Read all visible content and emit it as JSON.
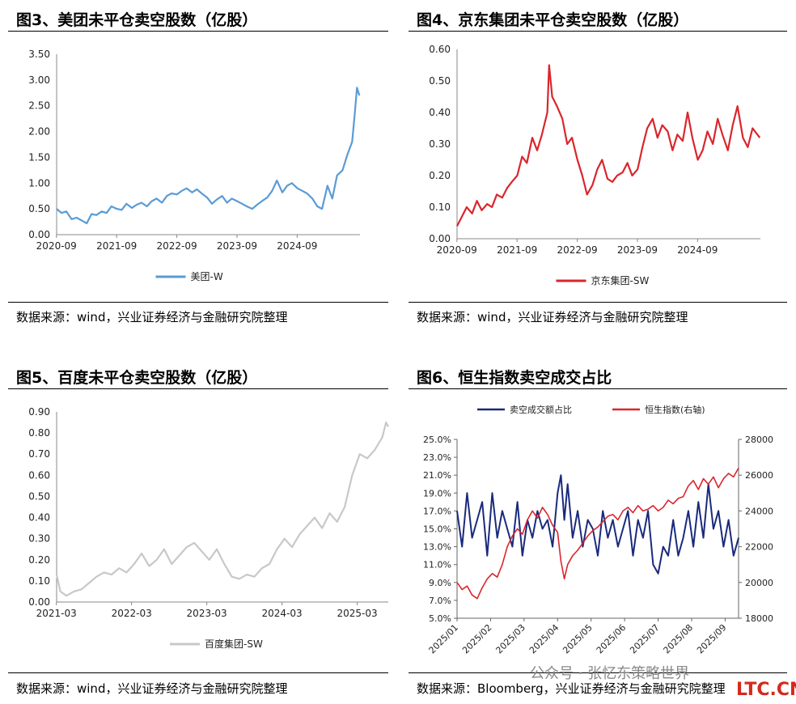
{
  "panels": [
    {
      "title": "图3、美团未平仓卖空股数（亿股）",
      "source": "数据来源：wind，兴业证券经济与金融研究院整理"
    },
    {
      "title": "图4、京东集团未平仓卖空股数（亿股）",
      "source": "数据来源：wind，兴业证券经济与金融研究院整理"
    },
    {
      "title": "图5、百度未平仓卖空股数（亿股）",
      "source": "数据来源：wind，兴业证券经济与金融研究院整理"
    },
    {
      "title": "图6、恒生指数卖空成交占比",
      "source": "数据来源：Bloomberg，兴业证券经济与金融研究院整理"
    }
  ],
  "watermark": "公众号 · 张忆东策略世界",
  "logo": "LTC.CN",
  "chart_data": [
    {
      "type": "line",
      "ylim": [
        0,
        3.5
      ],
      "yticks": [
        "0.00",
        "0.50",
        "1.00",
        "1.50",
        "2.00",
        "2.50",
        "3.00",
        "3.50"
      ],
      "xticks": [
        "2020-09",
        "2021-09",
        "2022-09",
        "2023-09",
        "2024-09"
      ],
      "xrange": [
        2020.67,
        2025.71
      ],
      "color": "#5b9bd5",
      "series": [
        {
          "name": "美团-W",
          "x": [
            2020.67,
            2020.75,
            2020.83,
            2020.92,
            2021.0,
            2021.08,
            2021.17,
            2021.25,
            2021.33,
            2021.42,
            2021.5,
            2021.58,
            2021.67,
            2021.75,
            2021.83,
            2021.92,
            2022.0,
            2022.08,
            2022.17,
            2022.25,
            2022.33,
            2022.42,
            2022.5,
            2022.58,
            2022.67,
            2022.75,
            2022.83,
            2022.92,
            2023.0,
            2023.08,
            2023.17,
            2023.25,
            2023.33,
            2023.42,
            2023.5,
            2023.58,
            2023.67,
            2023.75,
            2023.83,
            2023.92,
            2024.0,
            2024.08,
            2024.17,
            2024.25,
            2024.33,
            2024.42,
            2024.5,
            2024.58,
            2024.67,
            2024.75,
            2024.83,
            2024.92,
            2025.0,
            2025.08,
            2025.17,
            2025.25,
            2025.33,
            2025.42,
            2025.5,
            2025.58,
            2025.62,
            2025.66,
            2025.7
          ],
          "values": [
            0.5,
            0.42,
            0.45,
            0.3,
            0.33,
            0.28,
            0.22,
            0.4,
            0.38,
            0.45,
            0.42,
            0.55,
            0.5,
            0.48,
            0.6,
            0.52,
            0.58,
            0.62,
            0.55,
            0.65,
            0.7,
            0.62,
            0.75,
            0.8,
            0.78,
            0.85,
            0.9,
            0.82,
            0.88,
            0.8,
            0.72,
            0.6,
            0.68,
            0.75,
            0.62,
            0.7,
            0.65,
            0.6,
            0.55,
            0.5,
            0.58,
            0.65,
            0.72,
            0.85,
            1.05,
            0.82,
            0.95,
            1.0,
            0.9,
            0.85,
            0.8,
            0.7,
            0.55,
            0.5,
            0.95,
            0.7,
            1.15,
            1.25,
            1.55,
            1.8,
            2.3,
            2.85,
            2.7
          ]
        }
      ]
    },
    {
      "type": "line",
      "ylim": [
        0,
        0.6
      ],
      "yticks": [
        "0.00",
        "0.10",
        "0.20",
        "0.30",
        "0.40",
        "0.50",
        "0.60"
      ],
      "xticks": [
        "2020-09",
        "2021-09",
        "2022-09",
        "2023-09",
        "2024-09"
      ],
      "xrange": [
        2020.67,
        2025.71
      ],
      "color": "#d9262c",
      "series": [
        {
          "name": "京东集团-SW",
          "x": [
            2020.67,
            2020.75,
            2020.83,
            2020.92,
            2021.0,
            2021.08,
            2021.17,
            2021.25,
            2021.33,
            2021.42,
            2021.5,
            2021.58,
            2021.67,
            2021.75,
            2021.83,
            2021.92,
            2022.0,
            2022.08,
            2022.17,
            2022.2,
            2022.25,
            2022.33,
            2022.42,
            2022.5,
            2022.58,
            2022.67,
            2022.75,
            2022.83,
            2022.92,
            2023.0,
            2023.08,
            2023.17,
            2023.25,
            2023.33,
            2023.42,
            2023.5,
            2023.58,
            2023.67,
            2023.75,
            2023.83,
            2023.92,
            2024.0,
            2024.08,
            2024.17,
            2024.25,
            2024.33,
            2024.42,
            2024.5,
            2024.58,
            2024.67,
            2024.75,
            2024.83,
            2024.92,
            2025.0,
            2025.08,
            2025.17,
            2025.25,
            2025.33,
            2025.42,
            2025.5,
            2025.58,
            2025.66,
            2025.7
          ],
          "values": [
            0.04,
            0.07,
            0.1,
            0.08,
            0.12,
            0.09,
            0.11,
            0.1,
            0.14,
            0.13,
            0.16,
            0.18,
            0.2,
            0.26,
            0.24,
            0.32,
            0.28,
            0.33,
            0.4,
            0.55,
            0.45,
            0.42,
            0.38,
            0.3,
            0.32,
            0.25,
            0.2,
            0.14,
            0.17,
            0.22,
            0.25,
            0.19,
            0.18,
            0.2,
            0.21,
            0.24,
            0.2,
            0.22,
            0.29,
            0.35,
            0.38,
            0.32,
            0.36,
            0.34,
            0.28,
            0.33,
            0.31,
            0.4,
            0.32,
            0.25,
            0.28,
            0.34,
            0.3,
            0.38,
            0.33,
            0.28,
            0.36,
            0.42,
            0.32,
            0.29,
            0.35,
            0.33,
            0.32
          ]
        }
      ]
    },
    {
      "type": "line",
      "ylim": [
        0,
        0.9
      ],
      "yticks": [
        "0.00",
        "0.10",
        "0.20",
        "0.30",
        "0.40",
        "0.50",
        "0.60",
        "0.70",
        "0.80",
        "0.90"
      ],
      "xticks": [
        "2021-03",
        "2022-03",
        "2023-03",
        "2024-03",
        "2025-03"
      ],
      "xrange": [
        2021.17,
        2025.58
      ],
      "color": "#c8c8c8",
      "series": [
        {
          "name": "百度集团-SW",
          "x": [
            2021.17,
            2021.22,
            2021.3,
            2021.4,
            2021.5,
            2021.6,
            2021.7,
            2021.8,
            2021.9,
            2022.0,
            2022.1,
            2022.2,
            2022.3,
            2022.4,
            2022.5,
            2022.6,
            2022.7,
            2022.8,
            2022.9,
            2023.0,
            2023.1,
            2023.2,
            2023.3,
            2023.4,
            2023.5,
            2023.6,
            2023.7,
            2023.8,
            2023.9,
            2024.0,
            2024.1,
            2024.2,
            2024.3,
            2024.4,
            2024.5,
            2024.6,
            2024.7,
            2024.8,
            2024.9,
            2025.0,
            2025.1,
            2025.2,
            2025.3,
            2025.4,
            2025.5,
            2025.55,
            2025.58
          ],
          "values": [
            0.13,
            0.05,
            0.03,
            0.05,
            0.06,
            0.09,
            0.12,
            0.14,
            0.13,
            0.16,
            0.14,
            0.18,
            0.23,
            0.17,
            0.2,
            0.25,
            0.18,
            0.22,
            0.26,
            0.28,
            0.24,
            0.2,
            0.25,
            0.18,
            0.12,
            0.11,
            0.13,
            0.12,
            0.16,
            0.18,
            0.25,
            0.3,
            0.26,
            0.32,
            0.36,
            0.4,
            0.35,
            0.42,
            0.38,
            0.45,
            0.6,
            0.7,
            0.68,
            0.72,
            0.78,
            0.85,
            0.83
          ]
        }
      ]
    },
    {
      "type": "line",
      "ylim": [
        0.05,
        0.25
      ],
      "y2lim": [
        18000,
        28000
      ],
      "yticks": [
        "5.0%",
        "7.0%",
        "9.0%",
        "11.0%",
        "13.0%",
        "15.0%",
        "17.0%",
        "19.0%",
        "21.0%",
        "23.0%",
        "25.0%"
      ],
      "y2ticks": [
        "18000",
        "20000",
        "22000",
        "24000",
        "26000",
        "28000"
      ],
      "xticks": [
        "2025/01",
        "2025/02",
        "2025/03",
        "2025/04",
        "2025/05",
        "2025/06",
        "2025/07",
        "2025/08",
        "2025/09"
      ],
      "xrange": [
        0,
        8.4
      ],
      "legend": "top",
      "series": [
        {
          "name": "卖空成交额占比",
          "color": "#1a2a7c",
          "axis": "left",
          "x": [
            0,
            0.15,
            0.3,
            0.45,
            0.6,
            0.75,
            0.9,
            1.05,
            1.2,
            1.35,
            1.5,
            1.65,
            1.8,
            1.95,
            2.1,
            2.25,
            2.4,
            2.55,
            2.7,
            2.85,
            3.0,
            3.1,
            3.2,
            3.3,
            3.45,
            3.6,
            3.75,
            3.9,
            4.05,
            4.2,
            4.35,
            4.5,
            4.65,
            4.8,
            4.95,
            5.1,
            5.25,
            5.4,
            5.55,
            5.7,
            5.85,
            6.0,
            6.15,
            6.3,
            6.45,
            6.6,
            6.75,
            6.9,
            7.05,
            7.2,
            7.35,
            7.5,
            7.65,
            7.8,
            7.95,
            8.1,
            8.25,
            8.4
          ],
          "values": [
            0.17,
            0.13,
            0.19,
            0.14,
            0.16,
            0.18,
            0.12,
            0.19,
            0.14,
            0.17,
            0.15,
            0.13,
            0.18,
            0.12,
            0.16,
            0.14,
            0.17,
            0.15,
            0.16,
            0.13,
            0.19,
            0.21,
            0.16,
            0.2,
            0.14,
            0.17,
            0.13,
            0.16,
            0.15,
            0.12,
            0.17,
            0.14,
            0.16,
            0.13,
            0.15,
            0.17,
            0.12,
            0.16,
            0.14,
            0.17,
            0.11,
            0.1,
            0.13,
            0.12,
            0.16,
            0.12,
            0.14,
            0.17,
            0.13,
            0.18,
            0.14,
            0.2,
            0.15,
            0.17,
            0.13,
            0.16,
            0.12,
            0.14
          ]
        },
        {
          "name": "恒生指数(右轴)",
          "color": "#d9262c",
          "axis": "right",
          "x": [
            0,
            0.15,
            0.3,
            0.45,
            0.6,
            0.75,
            0.9,
            1.05,
            1.2,
            1.35,
            1.5,
            1.65,
            1.8,
            1.95,
            2.1,
            2.25,
            2.4,
            2.55,
            2.7,
            2.85,
            3.0,
            3.1,
            3.2,
            3.3,
            3.45,
            3.6,
            3.75,
            3.9,
            4.05,
            4.2,
            4.35,
            4.5,
            4.65,
            4.8,
            4.95,
            5.1,
            5.25,
            5.4,
            5.55,
            5.7,
            5.85,
            6.0,
            6.15,
            6.3,
            6.45,
            6.6,
            6.75,
            6.9,
            7.05,
            7.2,
            7.35,
            7.5,
            7.65,
            7.8,
            7.95,
            8.1,
            8.25,
            8.4
          ],
          "values": [
            20000,
            19600,
            19800,
            19300,
            19100,
            19700,
            20200,
            20500,
            20300,
            21000,
            22000,
            22600,
            23000,
            22700,
            23500,
            24000,
            23600,
            24200,
            23800,
            23200,
            22800,
            21200,
            20200,
            21000,
            21500,
            21800,
            22200,
            22600,
            22900,
            23100,
            23400,
            23700,
            23800,
            23500,
            24000,
            24200,
            23900,
            24300,
            24000,
            24100,
            24300,
            24000,
            24200,
            24600,
            24400,
            24700,
            24800,
            25400,
            25700,
            25200,
            25800,
            25500,
            25900,
            25300,
            25800,
            26100,
            25900,
            26400
          ]
        }
      ]
    }
  ]
}
